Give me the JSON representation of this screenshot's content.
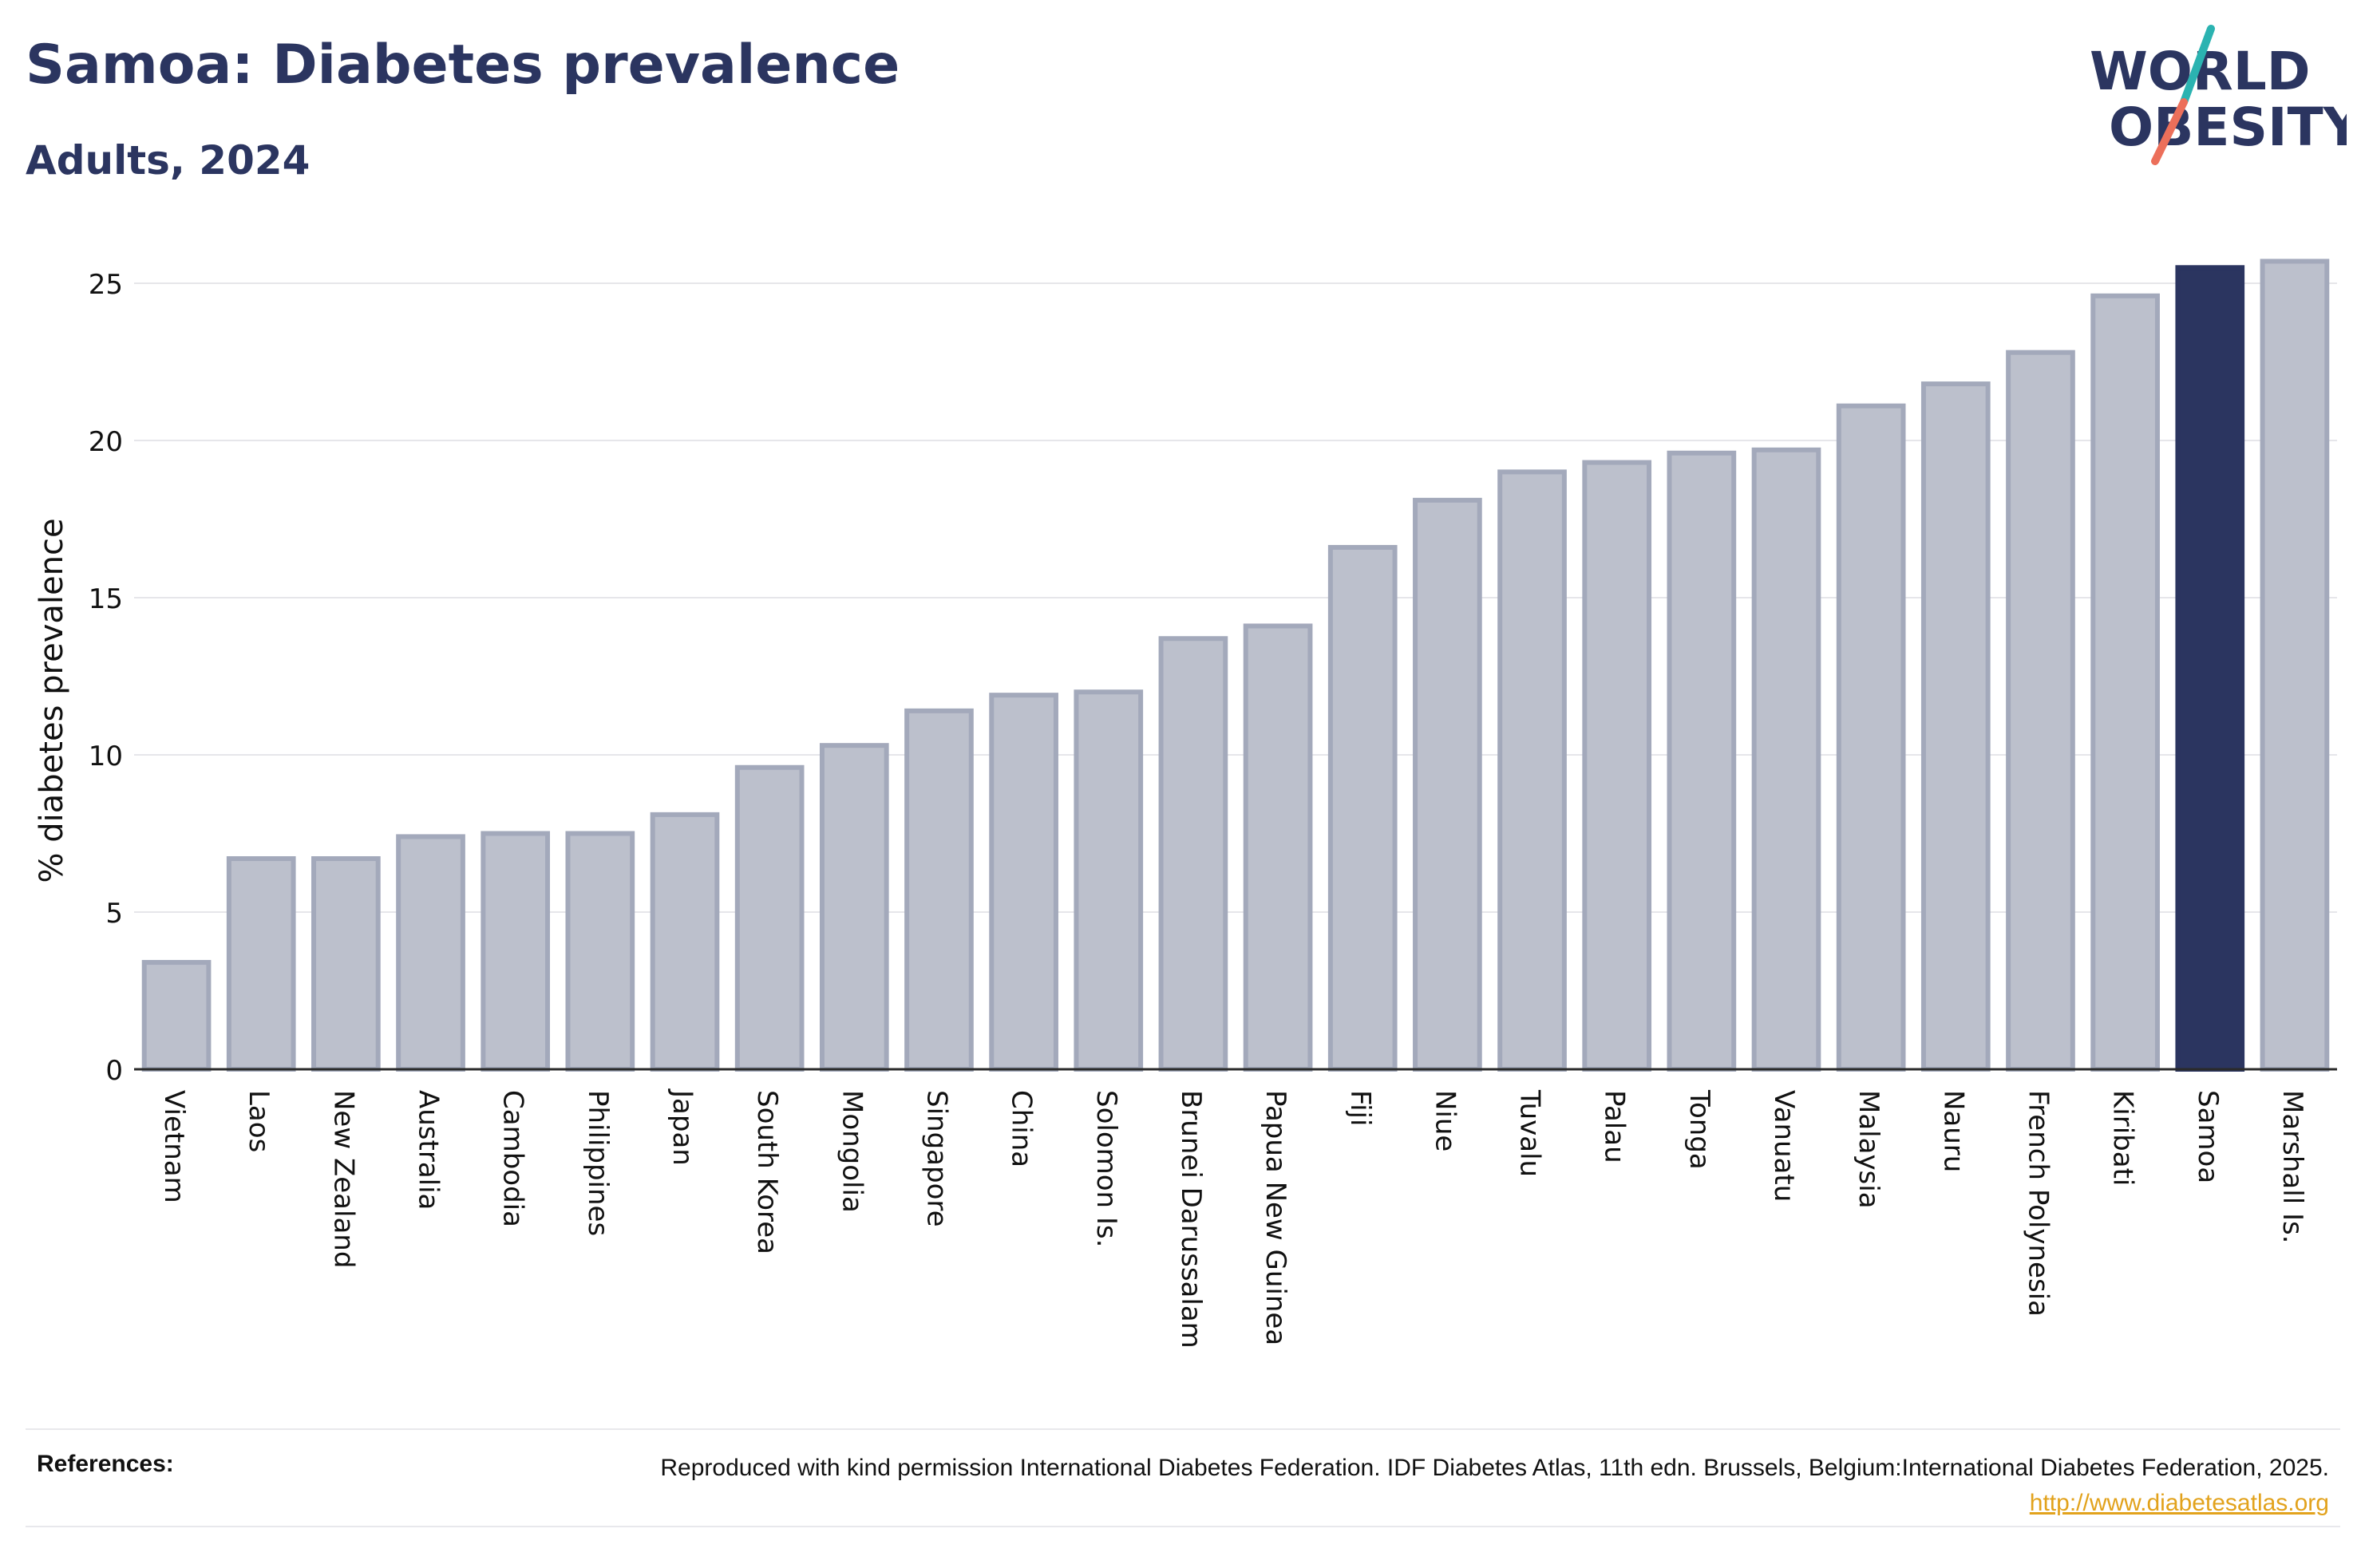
{
  "header": {
    "title": "Samoa: Diabetes prevalence",
    "subtitle": "Adults, 2024"
  },
  "logo": {
    "line1": "WORLD",
    "line2": "OBESITY"
  },
  "colors": {
    "default_bar": "#bcc0cc",
    "default_bar_stroke": "#a3a9bb",
    "highlight_bar": "#2b3560",
    "title": "#2b3560",
    "grid": "#e6e6ea",
    "link": "#e2a21c"
  },
  "chart_data": {
    "type": "bar",
    "ylabel": "% diabetes prevalence",
    "xlabel": "",
    "ylim": [
      0,
      26.5
    ],
    "yticks": [
      0,
      5,
      10,
      15,
      20,
      25
    ],
    "grid": true,
    "highlight": "Samoa",
    "categories": [
      "Vietnam",
      "Laos",
      "New Zealand",
      "Australia",
      "Cambodia",
      "Philippines",
      "Japan",
      "South Korea",
      "Mongolia",
      "Singapore",
      "China",
      "Solomon Is.",
      "Brunei Darussalam",
      "Papua New Guinea",
      "Fiji",
      "Niue",
      "Tuvalu",
      "Palau",
      "Tonga",
      "Vanuatu",
      "Malaysia",
      "Nauru",
      "French Polynesia",
      "Kiribati",
      "Samoa",
      "Marshall Is."
    ],
    "values": [
      3.4,
      6.7,
      6.7,
      7.4,
      7.5,
      7.5,
      8.1,
      9.6,
      10.3,
      11.4,
      11.9,
      12.0,
      13.7,
      14.1,
      16.6,
      18.1,
      19.0,
      19.3,
      19.6,
      19.7,
      21.1,
      21.8,
      22.8,
      24.6,
      25.5,
      25.7
    ]
  },
  "footer": {
    "references_label": "References:",
    "reference_text": "Reproduced with kind permission International Diabetes Federation. IDF Diabetes Atlas, 11th edn. Brussels, Belgium:International Diabetes Federation, 2025.",
    "reference_link": "http://www.diabetesatlas.org"
  }
}
